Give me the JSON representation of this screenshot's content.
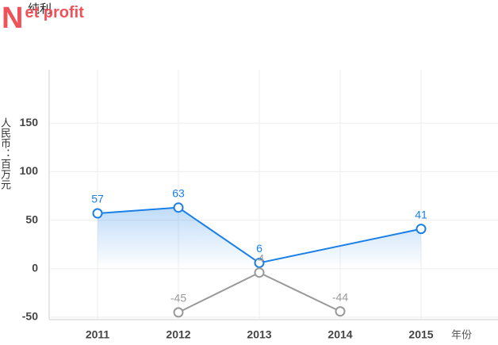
{
  "chart_data": {
    "type": "line",
    "title": "Net profit",
    "subtitle": "纯利",
    "y_label": "人民币：百万元",
    "x_label": "年份",
    "categories": [
      "2011",
      "2012",
      "2013",
      "2014",
      "2015"
    ],
    "series": [
      {
        "color": "#1a7fe6",
        "values": [
          57,
          63,
          6,
          null,
          41
        ],
        "area": true
      },
      {
        "color": "#999999",
        "values": [
          null,
          -45,
          -4,
          -44,
          null
        ]
      }
    ],
    "connect_gaps": true,
    "ylim": [
      -50,
      200
    ],
    "yticks": [
      -50,
      0,
      50,
      100,
      150
    ],
    "grid": true
  }
}
